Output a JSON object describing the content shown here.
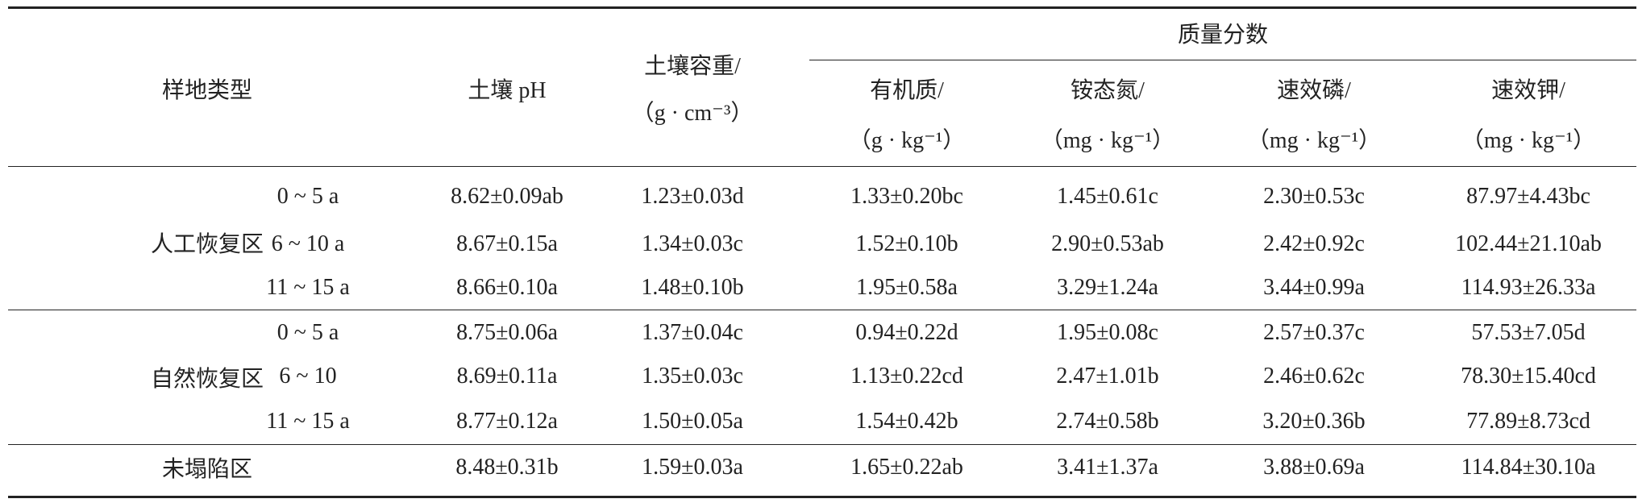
{
  "table": {
    "header": {
      "site_type": "样地类型",
      "ph": "土壤 pH",
      "bulk_density": [
        "土壤容重/",
        "（g · cm⁻³）"
      ],
      "mass_fraction": "质量分数",
      "organic_matter": [
        "有机质/",
        "（g · kg⁻¹）"
      ],
      "ammonium_n": [
        "铵态氮/",
        "（mg · kg⁻¹）"
      ],
      "available_p": [
        "速效磷/",
        "（mg · kg⁻¹）"
      ],
      "available_k": [
        "速效钾/",
        "（mg · kg⁻¹）"
      ]
    },
    "groups": [
      {
        "label": "人工恢复区",
        "rows": [
          {
            "age": "0 ~ 5 a",
            "values": [
              "8.62±0.09ab",
              "1.23±0.03d",
              "1.33±0.20bc",
              "1.45±0.61c",
              "2.30±0.53c",
              "87.97±4.43bc"
            ]
          },
          {
            "age": "6 ~ 10 a",
            "values": [
              "8.67±0.15a",
              "1.34±0.03c",
              "1.52±0.10b",
              "2.90±0.53ab",
              "2.42±0.92c",
              "102.44±21.10ab"
            ]
          },
          {
            "age": "11 ~ 15 a",
            "values": [
              "8.66±0.10a",
              "1.48±0.10b",
              "1.95±0.58a",
              "3.29±1.24a",
              "3.44±0.99a",
              "114.93±26.33a"
            ]
          }
        ]
      },
      {
        "label": "自然恢复区",
        "rows": [
          {
            "age": "0 ~ 5 a",
            "values": [
              "8.75±0.06a",
              "1.37±0.04c",
              "0.94±0.22d",
              "1.95±0.08c",
              "2.57±0.37c",
              "57.53±7.05d"
            ]
          },
          {
            "age": "6 ~ 10",
            "values": [
              "8.69±0.11a",
              "1.35±0.03c",
              "1.13±0.22cd",
              "2.47±1.01b",
              "2.46±0.62c",
              "78.30±15.40cd"
            ]
          },
          {
            "age": "11 ~ 15 a",
            "values": [
              "8.77±0.12a",
              "1.50±0.05a",
              "1.54±0.42b",
              "2.74±0.58b",
              "3.20±0.36b",
              "77.89±8.73cd"
            ]
          }
        ]
      },
      {
        "label": "未塌陷区",
        "rows": [
          {
            "values": [
              "8.48±0.31b",
              "1.59±0.03a",
              "1.65±0.22ab",
              "3.41±1.37a",
              "3.88±0.69a",
              "114.84±30.10a"
            ]
          }
        ]
      }
    ]
  }
}
